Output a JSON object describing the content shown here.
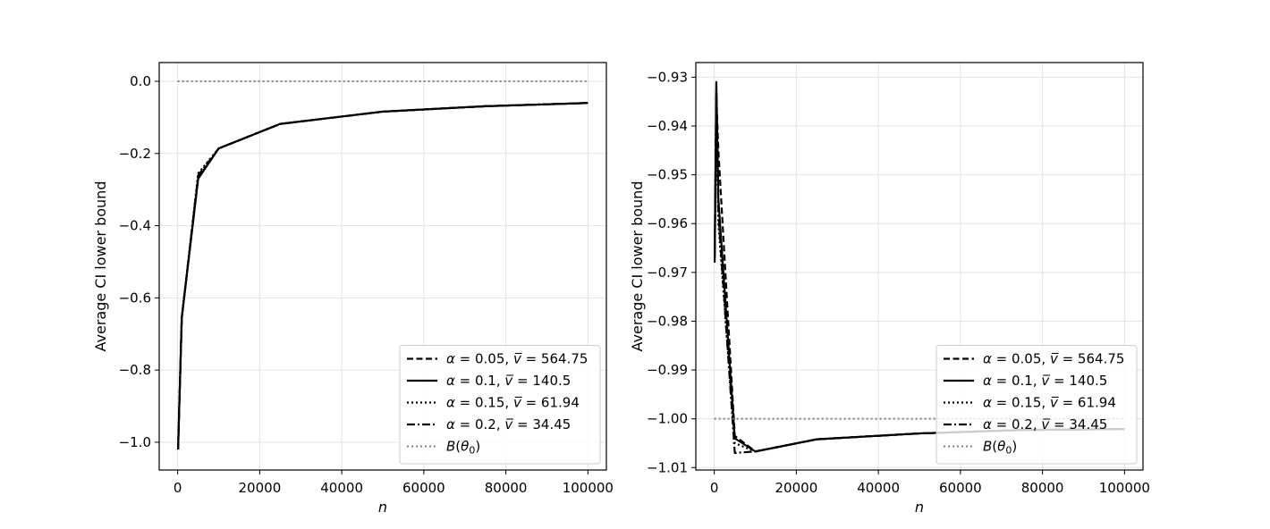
{
  "chart_data": [
    {
      "type": "line",
      "xlabel": "n",
      "ylabel": "Average CI lower bound",
      "xlim": [
        -4500,
        104500
      ],
      "ylim": [
        -1.077,
        0.052
      ],
      "xticks": [
        0,
        20000,
        40000,
        60000,
        80000,
        100000
      ],
      "xtick_labels": [
        "0",
        "20000",
        "40000",
        "60000",
        "80000",
        "100000"
      ],
      "yticks": [
        0.0,
        -0.2,
        -0.4,
        -0.6,
        -0.8,
        -1.0
      ],
      "ytick_labels": [
        "0.0",
        "−0.2",
        "−0.4",
        "−0.6",
        "−0.8",
        "−1.0"
      ],
      "grid": true,
      "legend_position": "lower-right",
      "series": [
        {
          "name": "α = 0.05, v̅ = 564.75",
          "style": "dashed",
          "x": [
            100,
            1000,
            5000,
            10000,
            25000,
            50000,
            75000,
            100000
          ],
          "y": [
            -1.02,
            -0.655,
            -0.268,
            -0.186,
            -0.118,
            -0.084,
            -0.069,
            -0.06
          ]
        },
        {
          "name": "α = 0.1, v̅ = 140.5",
          "style": "solid",
          "x": [
            100,
            1000,
            5000,
            10000,
            25000,
            50000,
            75000,
            100000
          ],
          "y": [
            -1.02,
            -0.655,
            -0.27,
            -0.186,
            -0.118,
            -0.084,
            -0.069,
            -0.06
          ]
        },
        {
          "name": "α = 0.15, v̅ = 61.94",
          "style": "dotted",
          "x": [
            100,
            1000,
            5000,
            10000,
            25000,
            50000,
            75000,
            100000
          ],
          "y": [
            -1.02,
            -0.655,
            -0.255,
            -0.186,
            -0.118,
            -0.084,
            -0.069,
            -0.06
          ]
        },
        {
          "name": "α = 0.2, v̅ = 34.45",
          "style": "dashdot",
          "x": [
            100,
            1000,
            5000,
            10000,
            25000,
            50000,
            75000,
            100000
          ],
          "y": [
            -1.02,
            -0.655,
            -0.26,
            -0.186,
            -0.118,
            -0.084,
            -0.069,
            -0.06
          ]
        },
        {
          "name": "B(θ₀)",
          "style": "reference",
          "color": "#808080",
          "x": [
            0,
            100000
          ],
          "y": [
            0.0,
            0.0
          ]
        }
      ]
    },
    {
      "type": "line",
      "xlabel": "n",
      "ylabel": "Average CI lower bound",
      "xlim": [
        -4500,
        104500
      ],
      "ylim": [
        -1.0105,
        -0.927
      ],
      "xticks": [
        0,
        20000,
        40000,
        60000,
        80000,
        100000
      ],
      "xtick_labels": [
        "0",
        "20000",
        "40000",
        "60000",
        "80000",
        "100000"
      ],
      "yticks": [
        -0.93,
        -0.94,
        -0.95,
        -0.96,
        -0.97,
        -0.98,
        -0.99,
        -1.0,
        -1.01
      ],
      "ytick_labels": [
        "−0.93",
        "−0.94",
        "−0.95",
        "−0.96",
        "−0.97",
        "−0.98",
        "−0.99",
        "−1.00",
        "−1.01"
      ],
      "grid": true,
      "legend_position": "lower-right",
      "series": [
        {
          "name": "α = 0.05, v̅ = 564.75",
          "style": "dashed",
          "x": [
            100,
            500,
            1000,
            5000,
            10000,
            25000,
            50000,
            75000,
            100000
          ],
          "y": [
            -0.967,
            -0.934,
            -0.945,
            -1.0035,
            -1.0067,
            -1.0042,
            -1.003,
            -1.0023,
            -1.0021
          ]
        },
        {
          "name": "α = 0.1, v̅ = 140.5",
          "style": "solid",
          "x": [
            100,
            500,
            1000,
            5000,
            10000,
            25000,
            50000,
            75000,
            100000
          ],
          "y": [
            -0.968,
            -0.931,
            -0.955,
            -1.004,
            -1.0067,
            -1.0042,
            -1.003,
            -1.0023,
            -1.0021
          ]
        },
        {
          "name": "α = 0.15, v̅ = 61.94",
          "style": "dotted",
          "x": [
            100,
            500,
            1000,
            5000,
            10000,
            25000,
            50000,
            75000,
            100000
          ],
          "y": [
            -0.966,
            -0.936,
            -0.96,
            -1.005,
            -1.0067,
            -1.0042,
            -1.003,
            -1.0023,
            -1.0021
          ]
        },
        {
          "name": "α = 0.2, v̅ = 34.45",
          "style": "dashdot",
          "x": [
            100,
            500,
            1000,
            5000,
            10000,
            25000,
            50000,
            75000,
            100000
          ],
          "y": [
            -0.966,
            -0.933,
            -0.958,
            -1.007,
            -1.0067,
            -1.0042,
            -1.003,
            -1.0023,
            -1.0021
          ]
        },
        {
          "name": "B(θ₀)",
          "style": "reference",
          "color": "#808080",
          "x": [
            0,
            100000
          ],
          "y": [
            -1.0,
            -1.0
          ]
        }
      ]
    }
  ]
}
